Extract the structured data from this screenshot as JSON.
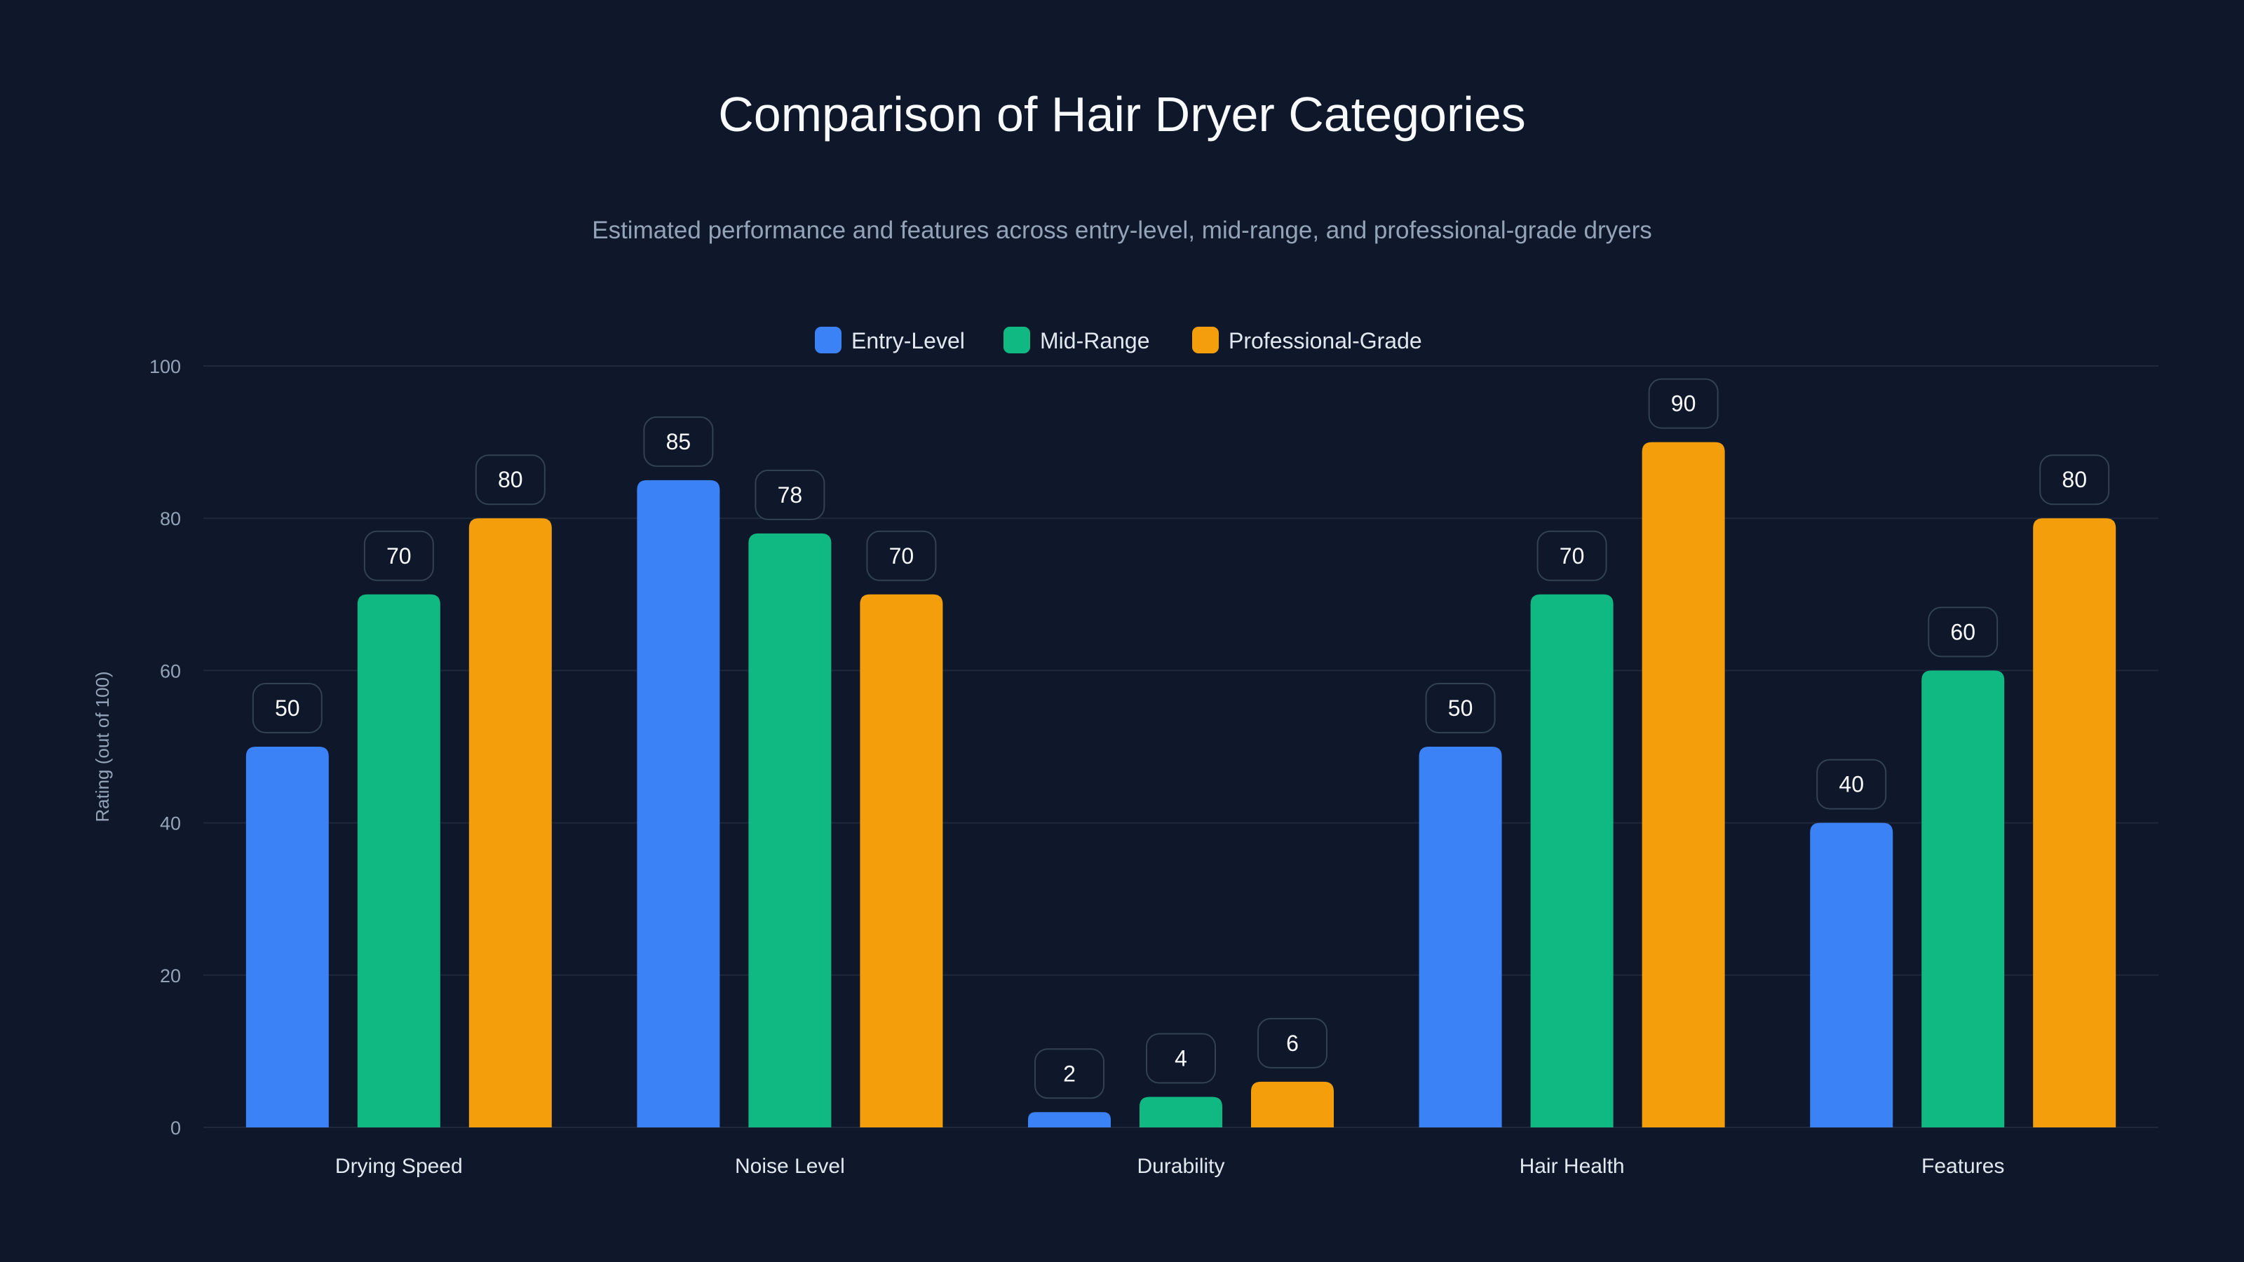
{
  "chart_data": {
    "type": "bar",
    "title": "Comparison of Hair Dryer Categories",
    "subtitle": "Estimated performance and features across entry-level, mid-range, and professional-grade dryers",
    "xlabel": "",
    "ylabel": "Rating (out of 100)",
    "ylim": [
      0,
      100
    ],
    "yticks": [
      0,
      20,
      40,
      60,
      80,
      100
    ],
    "grid": true,
    "legend_position": "top-center",
    "categories": [
      "Drying Speed",
      "Noise Level",
      "Durability",
      "Hair Health",
      "Features"
    ],
    "series": [
      {
        "name": "Entry-Level",
        "color": "#3b82f6",
        "values": [
          50,
          85,
          2,
          50,
          40
        ]
      },
      {
        "name": "Mid-Range",
        "color": "#10b981",
        "values": [
          70,
          78,
          4,
          70,
          60
        ]
      },
      {
        "name": "Professional-Grade",
        "color": "#f59e0b",
        "values": [
          80,
          70,
          6,
          90,
          80
        ]
      }
    ]
  },
  "colors": {
    "background": "#0f172a",
    "grid": "#1e293b",
    "label_border": "#334155"
  }
}
